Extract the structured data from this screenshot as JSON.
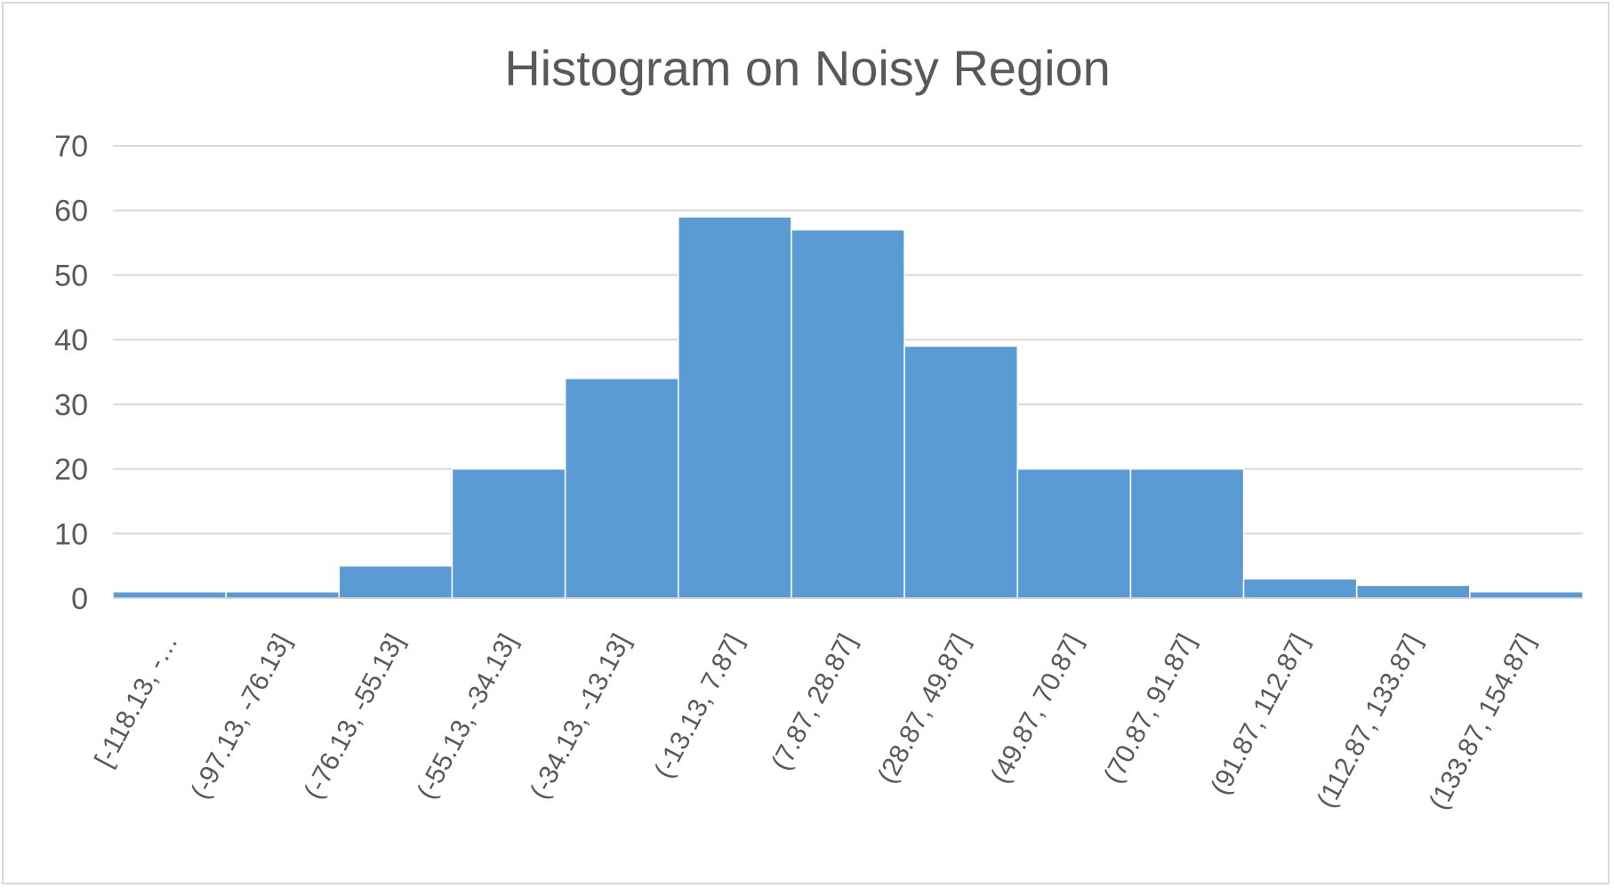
{
  "chart_data": {
    "type": "bar",
    "title": "Histogram on Noisy Region",
    "xlabel": "",
    "ylabel": "",
    "ylim": [
      0,
      70
    ],
    "yticks": [
      0,
      10,
      20,
      30,
      40,
      50,
      60,
      70
    ],
    "grid": true,
    "legend": "none",
    "bar_color": "#5b9bd5",
    "categories": [
      "[-118.13, -…",
      "(-97.13, -76.13]",
      "(-76.13, -55.13]",
      "(-55.13, -34.13]",
      "(-34.13, -13.13]",
      "(-13.13, 7.87]",
      "(7.87, 28.87]",
      "(28.87, 49.87]",
      "(49.87, 70.87]",
      "(70.87, 91.87]",
      "(91.87, 112.87]",
      "(112.87, 133.87]",
      "(133.87, 154.87]"
    ],
    "values": [
      1,
      1,
      5,
      20,
      34,
      59,
      57,
      39,
      20,
      20,
      3,
      2,
      1
    ]
  }
}
